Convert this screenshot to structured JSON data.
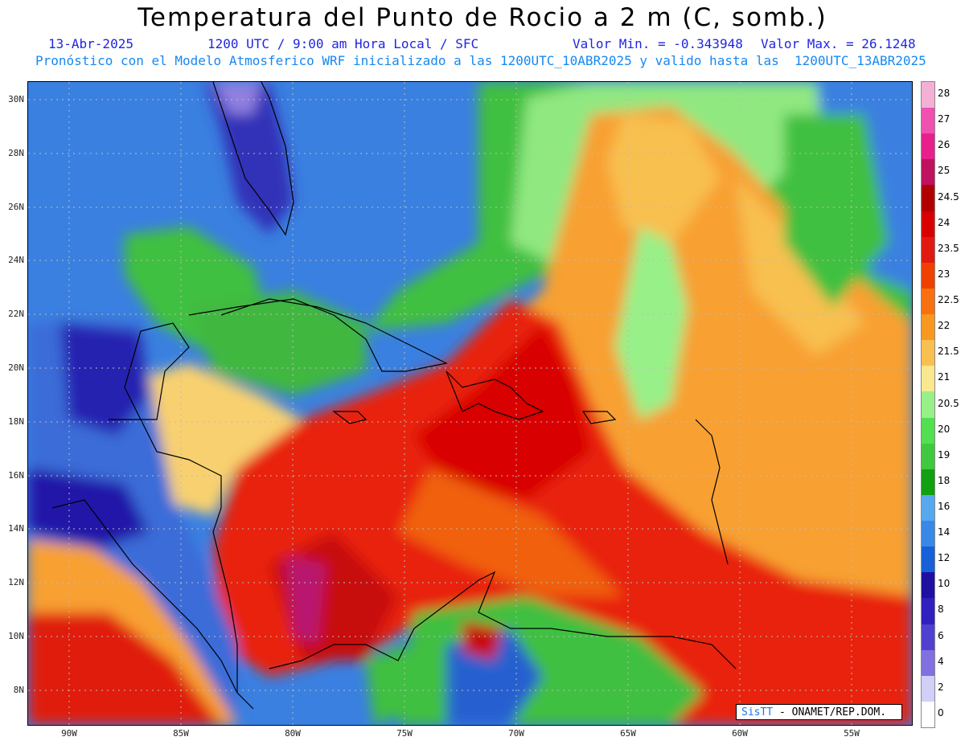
{
  "header": {
    "title": "Temperatura del Punto de Rocio a 2 m (C, somb.)",
    "date": "13-Abr-2025",
    "time_info": "1200 UTC / 9:00 am Hora Local / SFC",
    "min_value": "Valor Min. = -0.343948",
    "max_value": "Valor Max. = 26.1248",
    "model_info": "Pronóstico con el Modelo Atmosferico WRF inicializado a las 1200UTC_10ABR2025 y valido hasta las  1200UTC_13ABR2025"
  },
  "map": {
    "lat_labels": [
      "30N",
      "28N",
      "26N",
      "24N",
      "22N",
      "20N",
      "18N",
      "16N",
      "14N",
      "12N",
      "10N",
      "8N"
    ],
    "lon_labels": [
      "90W",
      "85W",
      "80W",
      "75W",
      "70W",
      "65W",
      "60W",
      "55W"
    ]
  },
  "colorbar": {
    "labels": [
      "28",
      "27",
      "26",
      "25",
      "24.5",
      "24",
      "23.5",
      "23",
      "22.5",
      "22",
      "21.5",
      "21",
      "20.5",
      "20",
      "19",
      "18",
      "16",
      "14",
      "12",
      "10",
      "8",
      "6",
      "4",
      "2",
      "0"
    ],
    "colors": [
      "#f4b0d4",
      "#f050b0",
      "#e8208c",
      "#c01060",
      "#b00000",
      "#d80000",
      "#e01a10",
      "#f04000",
      "#f87010",
      "#f89820",
      "#f8c050",
      "#f8e890",
      "#98f088",
      "#50e050",
      "#40c840",
      "#10a010",
      "#58a8f0",
      "#3888e8",
      "#1860d8",
      "#2010a0",
      "#3020c0",
      "#5040d0",
      "#8070e0",
      "#d0d0f8",
      "#ffffff"
    ]
  },
  "credit": {
    "brand": "SisTT",
    "org": " - ONAMET/REP.DOM."
  }
}
